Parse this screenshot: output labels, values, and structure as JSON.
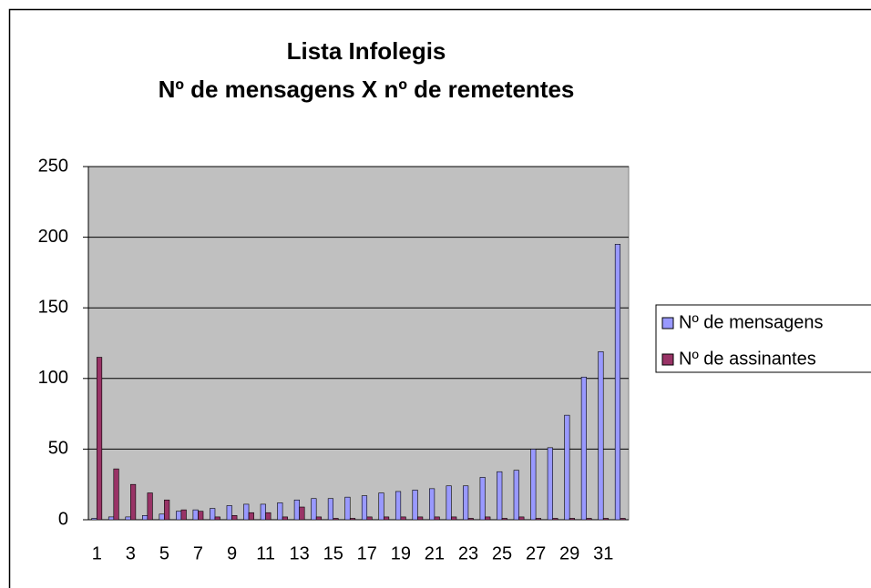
{
  "chart_data": {
    "type": "bar",
    "title": [
      "Lista Infolegis",
      "Nº de mensagens X nº de remetentes"
    ],
    "categories": [
      "1",
      null,
      "3",
      null,
      "5",
      null,
      "7",
      null,
      "9",
      null,
      "11",
      null,
      "13",
      null,
      "15",
      null,
      "17",
      null,
      "19",
      null,
      "21",
      null,
      "23",
      null,
      "25",
      null,
      "27",
      null,
      "29",
      null,
      "31",
      null
    ],
    "series": [
      {
        "name": "Nº de mensagens",
        "color": "#9999ff",
        "values": [
          1,
          2,
          2,
          3,
          4,
          6,
          7,
          8,
          10,
          11,
          11,
          12,
          14,
          15,
          15,
          16,
          17,
          19,
          20,
          21,
          22,
          24,
          24,
          30,
          34,
          35,
          50,
          51,
          74,
          101,
          119,
          195
        ]
      },
      {
        "name": "Nº de assinantes",
        "color": "#993366",
        "values": [
          115,
          36,
          25,
          19,
          14,
          7,
          6,
          2,
          3,
          5,
          5,
          2,
          9,
          2,
          1,
          1,
          2,
          2,
          2,
          2,
          2,
          2,
          1,
          2,
          1,
          2,
          1,
          1,
          1,
          1,
          1,
          1
        ]
      }
    ],
    "ylim": [
      0,
      250
    ],
    "yticks": [
      0,
      50,
      100,
      150,
      200,
      250
    ],
    "grid": true,
    "legend": "right",
    "plot_background": "#c0c0c0"
  }
}
